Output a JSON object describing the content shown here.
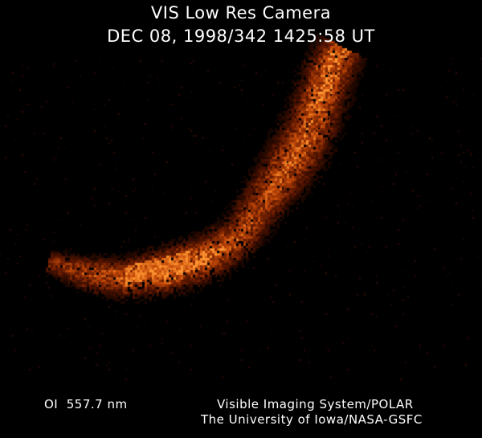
{
  "image": {
    "instrument_title": "VIS Low Res Camera",
    "timestamp": "DEC 08, 1998/342 1425:58 UT",
    "filter_label": "OI  557.7 nm",
    "credit_line_1": "Visible Imaging System/POLAR",
    "credit_line_2": "The University of Iowa/NASA-GSFC"
  },
  "colors": {
    "background": "#000000",
    "text": "#ffffff",
    "aurora_dim": "#5a1800",
    "aurora_mid": "#c04a08",
    "aurora_bright": "#ff9a3a"
  }
}
